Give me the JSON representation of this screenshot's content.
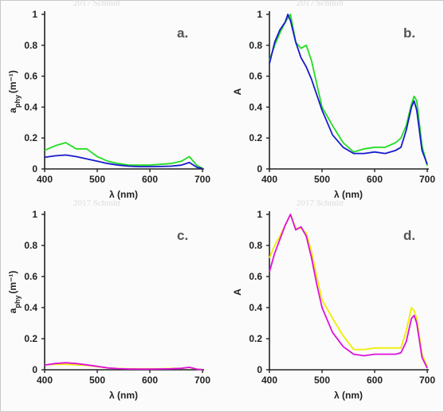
{
  "chart_data": [
    {
      "type": "line",
      "panel_label": "a.",
      "xlabel": "λ (nm)",
      "ylabel_main": "a",
      "ylabel_sub": "phy",
      "ylabel_unit": "(m⁻¹)",
      "xlim": [
        400,
        700
      ],
      "ylim": [
        0,
        1
      ],
      "xticks": [
        "400",
        "500",
        "600",
        "700"
      ],
      "yticks": [
        "0",
        "0.2",
        "0.4",
        "0.6",
        "0.8",
        "1"
      ],
      "series": [
        {
          "color": "#22dd22",
          "x": [
            400,
            420,
            440,
            460,
            480,
            500,
            520,
            540,
            560,
            580,
            600,
            620,
            640,
            660,
            675,
            690,
            700
          ],
          "y": [
            0.12,
            0.15,
            0.17,
            0.13,
            0.13,
            0.08,
            0.05,
            0.035,
            0.025,
            0.025,
            0.025,
            0.03,
            0.035,
            0.05,
            0.08,
            0.02,
            0.005
          ]
        },
        {
          "color": "#1a1acc",
          "x": [
            400,
            420,
            440,
            460,
            480,
            500,
            520,
            540,
            560,
            580,
            600,
            620,
            640,
            660,
            675,
            690,
            700
          ],
          "y": [
            0.075,
            0.085,
            0.09,
            0.08,
            0.065,
            0.05,
            0.035,
            0.025,
            0.018,
            0.015,
            0.015,
            0.016,
            0.018,
            0.025,
            0.042,
            0.01,
            0.003
          ]
        }
      ]
    },
    {
      "type": "line",
      "panel_label": "b.",
      "xlabel": "λ (nm)",
      "ylabel_main": "A",
      "xlim": [
        400,
        700
      ],
      "ylim": [
        0,
        1
      ],
      "xticks": [
        "400",
        "500",
        "600",
        "700"
      ],
      "yticks": [
        "0",
        "0.2",
        "0.4",
        "0.6",
        "0.8",
        "1"
      ],
      "series": [
        {
          "color": "#22dd22",
          "x": [
            400,
            410,
            420,
            430,
            440,
            450,
            460,
            470,
            480,
            490,
            500,
            520,
            540,
            560,
            580,
            600,
            620,
            640,
            650,
            660,
            670,
            675,
            680,
            690,
            700
          ],
          "y": [
            0.7,
            0.8,
            0.88,
            0.95,
            1.0,
            0.82,
            0.78,
            0.8,
            0.7,
            0.55,
            0.4,
            0.28,
            0.17,
            0.11,
            0.13,
            0.14,
            0.14,
            0.17,
            0.2,
            0.28,
            0.42,
            0.47,
            0.44,
            0.15,
            0.02
          ]
        },
        {
          "color": "#1a1acc",
          "x": [
            400,
            410,
            420,
            430,
            435,
            440,
            450,
            460,
            470,
            480,
            490,
            500,
            520,
            540,
            560,
            580,
            600,
            620,
            640,
            650,
            660,
            670,
            675,
            680,
            690,
            700
          ],
          "y": [
            0.68,
            0.82,
            0.9,
            0.95,
            1.0,
            0.96,
            0.82,
            0.72,
            0.66,
            0.58,
            0.48,
            0.38,
            0.22,
            0.14,
            0.1,
            0.1,
            0.11,
            0.1,
            0.12,
            0.14,
            0.25,
            0.4,
            0.44,
            0.38,
            0.12,
            0.03
          ]
        }
      ]
    },
    {
      "type": "line",
      "panel_label": "c.",
      "xlabel": "λ (nm)",
      "ylabel_main": "a",
      "ylabel_sub": "phy",
      "ylabel_unit": "(m⁻¹)",
      "xlim": [
        400,
        700
      ],
      "ylim": [
        0,
        1
      ],
      "xticks": [
        "400",
        "500",
        "600",
        "700"
      ],
      "yticks": [
        "0",
        "0.2",
        "0.4",
        "0.6",
        "0.8",
        "1"
      ],
      "series": [
        {
          "color": "#eeee00",
          "x": [
            400,
            420,
            440,
            460,
            480,
            500,
            520,
            540,
            560,
            580,
            600,
            620,
            640,
            660,
            675,
            690,
            700
          ],
          "y": [
            0.03,
            0.035,
            0.035,
            0.032,
            0.028,
            0.02,
            0.012,
            0.008,
            0.006,
            0.006,
            0.006,
            0.007,
            0.008,
            0.01,
            0.015,
            0.004,
            0.001
          ]
        },
        {
          "color": "#dd11dd",
          "x": [
            400,
            420,
            440,
            460,
            480,
            500,
            520,
            540,
            560,
            580,
            600,
            620,
            640,
            660,
            675,
            690,
            700
          ],
          "y": [
            0.03,
            0.04,
            0.045,
            0.04,
            0.032,
            0.022,
            0.012,
            0.007,
            0.005,
            0.004,
            0.004,
            0.005,
            0.006,
            0.009,
            0.016,
            0.003,
            0.001
          ]
        }
      ]
    },
    {
      "type": "line",
      "panel_label": "d.",
      "xlabel": "λ (nm)",
      "ylabel_main": "A",
      "xlim": [
        400,
        700
      ],
      "ylim": [
        0,
        1
      ],
      "xticks": [
        "400",
        "500",
        "600",
        "700"
      ],
      "yticks": [
        "0",
        "0.2",
        "0.4",
        "0.6",
        "0.8",
        "1"
      ],
      "series": [
        {
          "color": "#eeee00",
          "x": [
            400,
            410,
            420,
            430,
            440,
            450,
            460,
            470,
            480,
            490,
            500,
            520,
            540,
            560,
            580,
            600,
            620,
            640,
            650,
            660,
            670,
            675,
            680,
            690,
            700
          ],
          "y": [
            0.72,
            0.8,
            0.86,
            0.93,
            1.0,
            0.91,
            0.91,
            0.88,
            0.76,
            0.6,
            0.45,
            0.33,
            0.22,
            0.13,
            0.13,
            0.14,
            0.14,
            0.14,
            0.14,
            0.25,
            0.4,
            0.38,
            0.33,
            0.1,
            0.02
          ]
        },
        {
          "color": "#dd11dd",
          "x": [
            400,
            410,
            420,
            430,
            440,
            450,
            460,
            470,
            480,
            490,
            500,
            520,
            540,
            560,
            580,
            600,
            620,
            640,
            650,
            660,
            670,
            675,
            680,
            690,
            700
          ],
          "y": [
            0.63,
            0.75,
            0.84,
            0.93,
            1.0,
            0.9,
            0.92,
            0.86,
            0.72,
            0.55,
            0.4,
            0.24,
            0.15,
            0.1,
            0.09,
            0.1,
            0.1,
            0.1,
            0.11,
            0.18,
            0.33,
            0.35,
            0.3,
            0.08,
            0.01
          ]
        }
      ]
    }
  ],
  "watermarks": [
    "2017 Schmitt",
    "2017 Schmitt",
    "2017 Schmitt",
    "2017 Schmitt"
  ]
}
